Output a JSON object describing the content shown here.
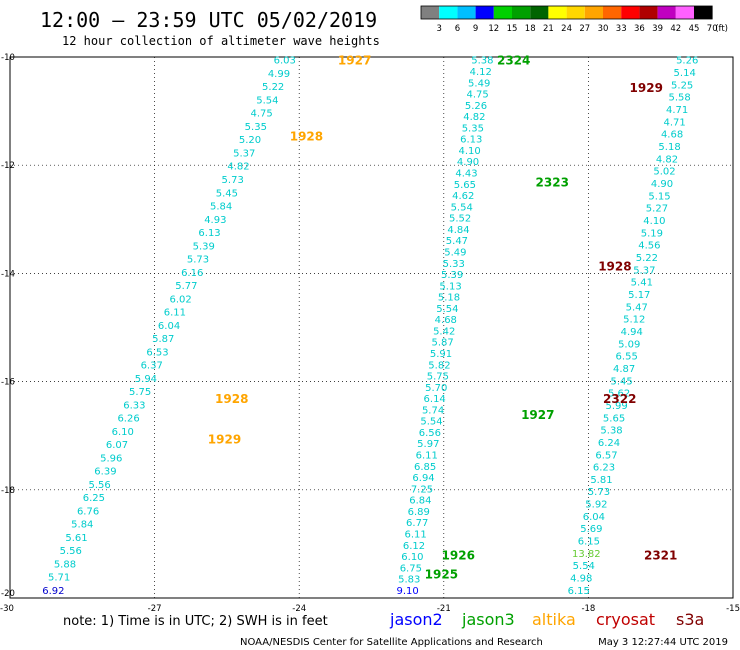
{
  "header": {
    "title": "12:00 – 23:59 UTC 05/02/2019",
    "subtitle": "12 hour collection of altimeter wave heights"
  },
  "colorbar": {
    "unit": "(ft)",
    "labels": [
      "3",
      "6",
      "9",
      "12",
      "15",
      "18",
      "21",
      "24",
      "27",
      "30",
      "33",
      "36",
      "39",
      "42",
      "45",
      "70"
    ],
    "colors": [
      "#808080",
      "#00ffff",
      "#00bfff",
      "#0000ff",
      "#00d000",
      "#00a000",
      "#006400",
      "#ffff00",
      "#ffd700",
      "#ffa500",
      "#ff6600",
      "#ff0000",
      "#b00000",
      "#c000c0",
      "#ff60ff",
      "#000000"
    ]
  },
  "footer": {
    "note": "note: 1) Time is in UTC; 2) SWH is in feet",
    "satellites": [
      {
        "name": "jason2",
        "color": "#0000ff"
      },
      {
        "name": "jason3",
        "color": "#00a000"
      },
      {
        "name": "altika",
        "color": "#ffa500"
      },
      {
        "name": "cryosat",
        "color": "#c00000"
      },
      {
        "name": "s3a",
        "color": "#800000"
      }
    ],
    "credit": "NOAA/NESDIS Center for Satellite Applications and Research",
    "timestamp": "May  3 12:27:44 UTC 2019"
  },
  "chart_data": {
    "type": "scatter",
    "xlim": [
      -30,
      -15
    ],
    "ylim": [
      -20,
      -10
    ],
    "x_ticks": [
      "-30",
      "-27",
      "-24",
      "-21",
      "-18",
      "-15"
    ],
    "y_ticks": [
      "-10",
      "-12",
      "-14",
      "-16",
      "-18",
      "-20"
    ],
    "grid": true,
    "tracks": [
      {
        "satellite": "altika",
        "color": "#ffa500",
        "value_color": "#00cccc",
        "start": [
          -24.3,
          -10.05
        ],
        "end": [
          -29.1,
          -19.85
        ],
        "values": [
          "6.03",
          "4.99",
          "5.22",
          "5.54",
          "4.75",
          "5.35",
          "5.20",
          "5.37",
          "4.82",
          "5.73",
          "5.45",
          "5.84",
          "4.93",
          "6.13",
          "5.39",
          "5.73",
          "6.16",
          "5.77",
          "6.02",
          "6.11",
          "6.04",
          "5.87",
          "6.53",
          "6.37",
          "5.94",
          "5.75",
          "6.33",
          "6.26",
          "6.10",
          "6.07",
          "5.96",
          "6.39",
          "5.56",
          "6.25",
          "6.76",
          "5.84",
          "5.61",
          "5.56",
          "5.88",
          "5.71",
          "6.92"
        ],
        "value_colors": {
          "40": "#0000cc"
        },
        "time_labels": [
          {
            "text": "1927",
            "x": -22.85,
            "y": -10.05
          },
          {
            "text": "1928",
            "x": -23.85,
            "y": -11.45
          },
          {
            "text": "1928",
            "x": -25.4,
            "y": -16.3
          },
          {
            "text": "1929",
            "x": -25.55,
            "y": -17.05
          }
        ]
      },
      {
        "satellite": "jason3",
        "color": "#00a000",
        "value_color": "#00cccc",
        "start": [
          -20.2,
          -10.05
        ],
        "end": [
          -21.75,
          -19.85
        ],
        "values": [
          "5.38",
          "4.12",
          "5.49",
          "4.75",
          "5.26",
          "4.82",
          "5.35",
          "6.13",
          "4.10",
          "4.90",
          "4.43",
          "5.65",
          "4.62",
          "5.54",
          "5.52",
          "4.84",
          "5.47",
          "5.49",
          "5.33",
          "5.39",
          "5.13",
          "5.18",
          "5.54",
          "4.68",
          "5.42",
          "5.87",
          "5.91",
          "5.82",
          "5.75",
          "5.70",
          "6.14",
          "5.74",
          "5.54",
          "6.56",
          "5.97",
          "6.11",
          "6.85",
          "6.94",
          "7.25",
          "6.84",
          "6.89",
          "6.77",
          "6.11",
          "6.12",
          "6.10",
          "6.75",
          "5.83",
          "9.10"
        ],
        "value_colors": {
          "47": "#0000ff"
        },
        "time_labels": [
          {
            "text": "2324",
            "x": -19.55,
            "y": -10.05
          },
          {
            "text": "2323",
            "x": -18.75,
            "y": -12.3
          },
          {
            "text": "1927",
            "x": -19.05,
            "y": -16.6
          },
          {
            "text": "1926",
            "x": -20.7,
            "y": -19.2
          },
          {
            "text": "1925",
            "x": -21.05,
            "y": -19.55
          }
        ]
      },
      {
        "satellite": "cryosat",
        "color": "#800000",
        "value_color": "#00cccc",
        "start": [
          -15.95,
          -10.05
        ],
        "end": [
          -18.2,
          -19.85
        ],
        "values": [
          "5.26",
          "5.14",
          "5.25",
          "5.58",
          "4.71",
          "4.71",
          "4.68",
          "5.18",
          "4.82",
          "5.02",
          "4.90",
          "5.15",
          "5.27",
          "4.10",
          "5.19",
          "4.56",
          "5.22",
          "5.37",
          "5.41",
          "5.17",
          "5.47",
          "5.12",
          "4.94",
          "5.09",
          "6.55",
          "4.87",
          "5.45",
          "5.62",
          "5.99",
          "5.65",
          "5.38",
          "6.24",
          "6.57",
          "6.23",
          "5.81",
          "5.73",
          "5.92",
          "6.04",
          "5.69",
          "6.15",
          "13.82",
          "5.54",
          "4.98",
          "6.15"
        ],
        "value_colors": {
          "40": "#66cc33"
        },
        "time_labels": [
          {
            "text": "1929",
            "x": -16.8,
            "y": -10.55
          },
          {
            "text": "1928",
            "x": -17.45,
            "y": -13.85
          },
          {
            "text": "2322",
            "x": -17.35,
            "y": -16.3
          },
          {
            "text": "2321",
            "x": -16.5,
            "y": -19.2
          }
        ]
      }
    ]
  }
}
